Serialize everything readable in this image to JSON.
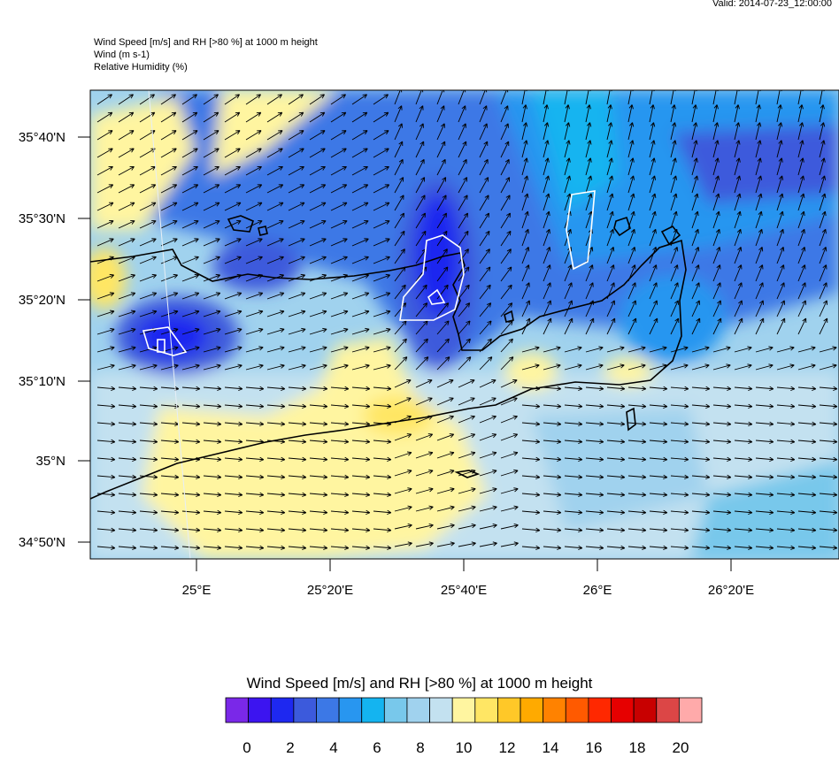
{
  "header": {
    "valid": "Valid: 2014-07-23_12:00:00",
    "title_lines": [
      "Wind Speed [m/s] and RH [>80 %] at 1000 m height",
      "Wind   (m s-1)",
      "Relative Humidity   (%)"
    ]
  },
  "axes": {
    "lat_labels": [
      "35°40'N",
      "35°30'N",
      "35°20'N",
      "35°10'N",
      "35°N",
      "34°50'N"
    ],
    "lon_labels": [
      "25°E",
      "25°20'E",
      "25°40'E",
      "26°E",
      "26°20'E"
    ]
  },
  "colorbar": {
    "title": "Wind Speed [m/s] and RH [>80 %] at 1000 m height",
    "colors": [
      "#7a28e8",
      "#3c14f0",
      "#1e28f0",
      "#3c5adc",
      "#3c78e6",
      "#2896f0",
      "#14b4f0",
      "#78c8eb",
      "#a0d2ee",
      "#c3e1f0",
      "#fff5a0",
      "#ffe664",
      "#ffc828",
      "#ffaa00",
      "#ff8200",
      "#ff5a00",
      "#ff2800",
      "#e60000",
      "#c80000",
      "#dc4646",
      "#ffaaaa"
    ],
    "ticks": [
      "0",
      "2",
      "4",
      "6",
      "8",
      "10",
      "12",
      "14",
      "16",
      "18",
      "20"
    ]
  }
}
